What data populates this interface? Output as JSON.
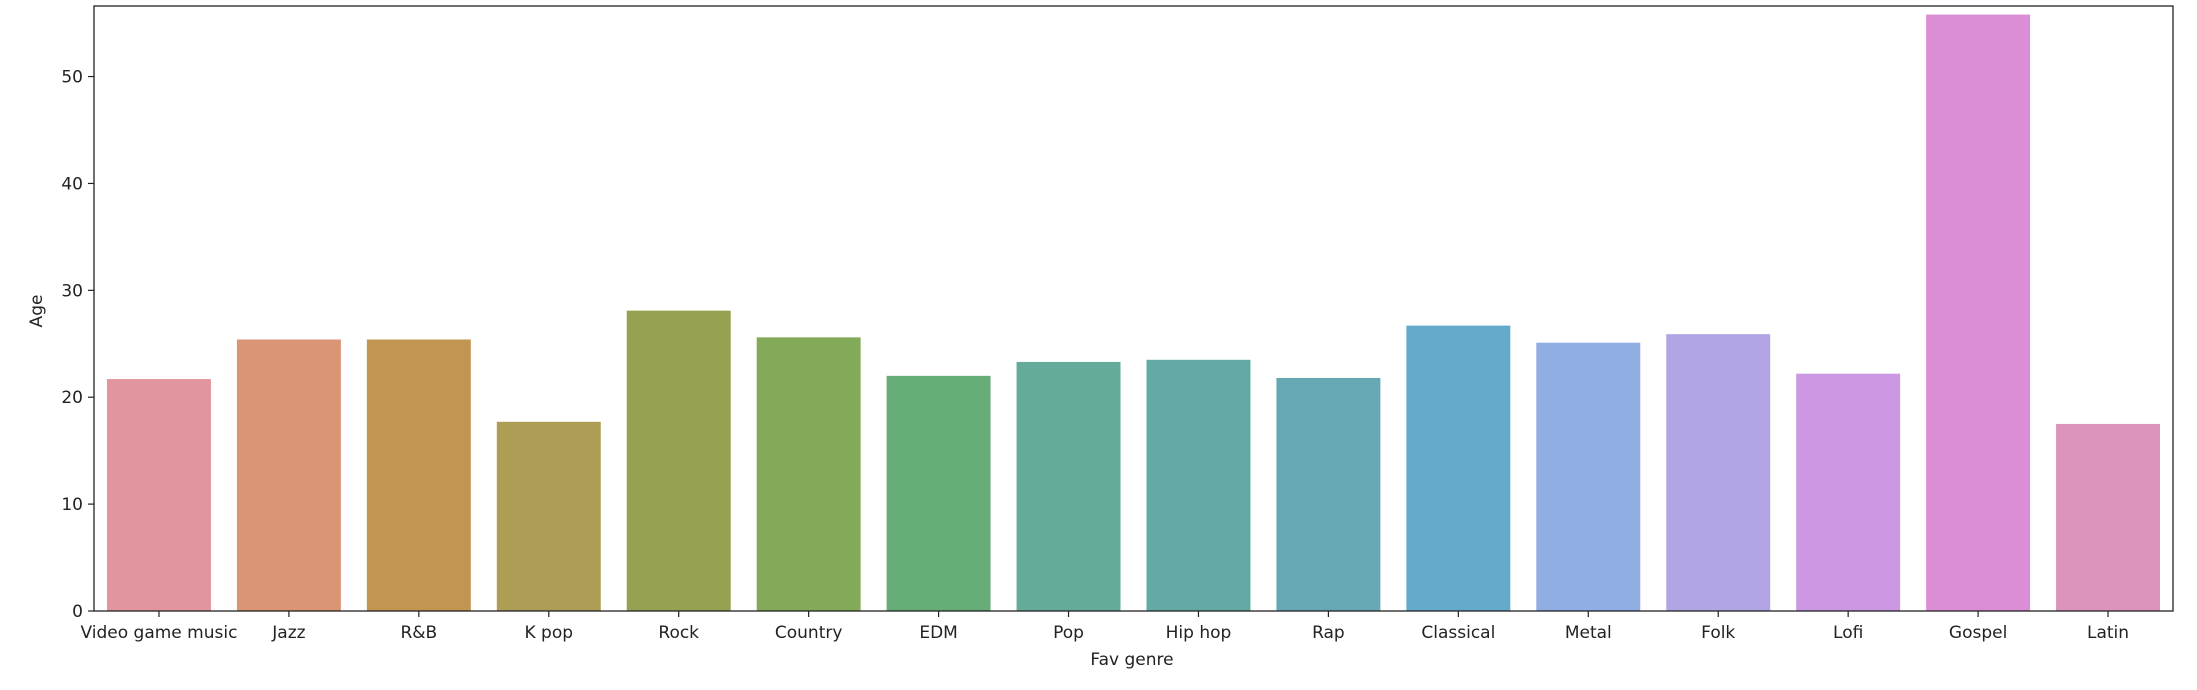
{
  "chart_data": {
    "type": "bar",
    "title": "",
    "xlabel": "Fav genre",
    "ylabel": "Age",
    "ylim": [
      0,
      56.6
    ],
    "yticks": [
      0,
      10,
      20,
      30,
      40,
      50
    ],
    "ytick_labels": [
      "0",
      "10",
      "20",
      "30",
      "40",
      "50"
    ],
    "categories": [
      "Video game music",
      "Jazz",
      "R&B",
      "K pop",
      "Rock",
      "Country",
      "EDM",
      "Pop",
      "Hip hop",
      "Rap",
      "Classical",
      "Metal",
      "Folk",
      "Lofi",
      "Gospel",
      "Latin"
    ],
    "values": [
      21.7,
      25.4,
      25.4,
      17.7,
      28.1,
      25.6,
      22.0,
      23.3,
      23.5,
      21.8,
      26.7,
      25.1,
      25.9,
      22.2,
      55.8,
      17.5
    ],
    "colors": [
      "#e1959e",
      "#da9674",
      "#c29652",
      "#ad9d55",
      "#98a151",
      "#82aa58",
      "#66ad78",
      "#64ac99",
      "#63aaa4",
      "#66a9b5",
      "#66aacb",
      "#90aee3",
      "#b3a4e6",
      "#cc98e3",
      "#db8ed5",
      "#dd94bc"
    ],
    "grid": false,
    "legend": "none"
  }
}
